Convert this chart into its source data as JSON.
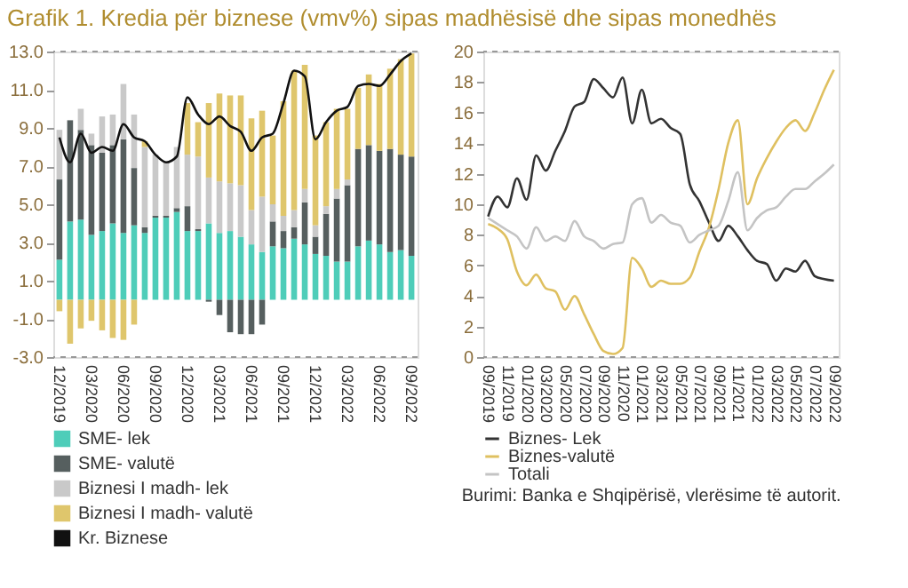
{
  "chart_data": [
    {
      "type": "bar",
      "stacked": true,
      "title": "Grafik 1. Kredia për biznese (vmv%) sipas madhësisë dhe sipas monedhës",
      "legend": "bottom",
      "categories": [
        "12/2019",
        null,
        null,
        "03/2020",
        null,
        null,
        "06/2020",
        null,
        null,
        "09/2020",
        null,
        null,
        "12/2020",
        null,
        null,
        "03/2021",
        null,
        null,
        "06/2021",
        null,
        null,
        "09/2021",
        null,
        null,
        "12/2021",
        null,
        null,
        "03/2022",
        null,
        null,
        "06/2022",
        null,
        null,
        "09/2022"
      ],
      "ylim": [
        -3,
        13
      ],
      "yticks": [
        {
          "value": -3,
          "label": "-3.0"
        },
        {
          "value": -1,
          "label": "-1.0"
        },
        {
          "value": 1,
          "label": "1.0"
        },
        {
          "value": 3,
          "label": "3.0"
        },
        {
          "value": 5,
          "label": "5.0"
        },
        {
          "value": 7,
          "label": "7.0"
        },
        {
          "value": 9,
          "label": "9.0"
        },
        {
          "value": 11,
          "label": "11.0"
        },
        {
          "value": 13,
          "label": "13.0"
        }
      ],
      "series": [
        {
          "name": "SME- lek",
          "color": "#4ecdb9",
          "values": [
            2.1,
            4.1,
            4.2,
            3.4,
            3.6,
            4.0,
            3.5,
            3.9,
            3.5,
            4.3,
            4.3,
            4.6,
            3.6,
            3.6,
            4.0,
            3.5,
            3.6,
            3.3,
            2.9,
            2.5,
            2.8,
            2.7,
            3.2,
            2.9,
            2.4,
            2.3,
            2.0,
            2.0,
            2.8,
            3.1,
            2.9,
            2.5,
            2.6,
            2.3
          ]
        },
        {
          "name": "SME- valutë",
          "color": "#565f5f",
          "values": [
            4.2,
            5.3,
            4.7,
            4.7,
            4.1,
            4.1,
            4.9,
            3.0,
            0.3,
            0.1,
            0.1,
            0.2,
            1.3,
            0.1,
            -0.1,
            -0.8,
            -1.7,
            -1.8,
            -1.8,
            -1.3,
            1.3,
            0.9,
            0.6,
            2.2,
            0.9,
            2.2,
            3.3,
            4.0,
            5.1,
            5.0,
            4.9,
            5.4,
            5.0,
            5.2
          ]
        },
        {
          "name": "Biznesi I madh- lek",
          "color": "#c9c9c9",
          "values": [
            2.6,
            null,
            1.1,
            0.6,
            1.9,
            1.6,
            2.9,
            2.8,
            4.2,
            3.2,
            2.8,
            3.2,
            2.7,
            3.8,
            2.4,
            2.7,
            2.5,
            2.7,
            1.8,
            2.9,
            0.9,
            0.8,
            0.9,
            0.7,
            0.6,
            0.4,
            0.5,
            0.3,
            null,
            null,
            null,
            null,
            null,
            null
          ]
        },
        {
          "name": "Biznesi I madh- valutë",
          "color": "#dfc66c",
          "values": [
            -0.6,
            -2.3,
            -1.5,
            -1.1,
            -1.6,
            -2.0,
            -2.1,
            -1.3,
            0.3,
            null,
            null,
            null,
            2.7,
            1.8,
            3.9,
            4.6,
            4.6,
            4.7,
            4.8,
            4.5,
            3.6,
            6.0,
            7.3,
            6.5,
            4.7,
            4.4,
            4.2,
            3.7,
            3.2,
            3.7,
            3.5,
            4.2,
            5.0,
            5.4
          ]
        },
        {
          "name": "Kr. Biznese",
          "type": "line",
          "color": "#111111",
          "values": [
            8.5,
            7.2,
            8.7,
            7.7,
            8.0,
            7.8,
            9.2,
            8.5,
            8.3,
            7.6,
            7.2,
            7.5,
            10.6,
            9.7,
            9.2,
            9.6,
            9.1,
            8.8,
            7.8,
            8.5,
            8.7,
            10.3,
            12.0,
            11.7,
            8.4,
            9.3,
            9.9,
            10.1,
            11.2,
            11.3,
            11.2,
            11.8,
            12.5,
            12.9
          ]
        }
      ]
    },
    {
      "type": "line",
      "legend": "bottom",
      "annotations": [
        "Burimi: Banka e Shqipërisë, vlerësime të autorit."
      ],
      "categories": [
        "09/2019",
        null,
        "11/2019",
        null,
        "01/2020",
        null,
        "03/2020",
        null,
        "05/2020",
        null,
        "07/2020",
        null,
        "09/2020",
        null,
        "11/2020",
        null,
        "01/2021",
        null,
        "03/2021",
        null,
        "05/2021",
        null,
        "07/2021",
        null,
        "09/2021",
        null,
        "11/2021",
        null,
        "01/2022",
        null,
        "03/2022",
        null,
        "05/2022",
        null,
        "07/2022",
        null,
        "09/2022"
      ],
      "ylim": [
        0,
        20
      ],
      "yticks": [
        0,
        2,
        4,
        6,
        8,
        10,
        12,
        14,
        16,
        18,
        20
      ],
      "series": [
        {
          "name": "Biznes- Lek",
          "color": "#333333",
          "values": [
            9.2,
            10.5,
            9.8,
            11.7,
            10.3,
            13.2,
            12.2,
            13.5,
            14.8,
            16.4,
            16.7,
            18.2,
            17.6,
            17.0,
            18.3,
            15.3,
            17.5,
            15.3,
            15.6,
            15.0,
            14.6,
            11.3,
            10.2,
            8.8,
            7.6,
            8.6,
            7.9,
            7.0,
            6.3,
            6.1,
            5.0,
            5.8,
            5.6,
            6.3,
            5.3,
            5.1,
            5.0
          ]
        },
        {
          "name": "Biznes-valutë",
          "color": "#dfc060",
          "values": [
            8.7,
            8.4,
            7.7,
            5.6,
            4.7,
            5.4,
            4.5,
            4.3,
            3.1,
            4.0,
            2.8,
            1.5,
            0.4,
            0.2,
            0.6,
            6.5,
            5.8,
            4.6,
            5.0,
            4.8,
            4.8,
            5.2,
            6.9,
            8.5,
            11.0,
            14.0,
            15.5,
            10.0,
            11.7,
            13.0,
            14.1,
            15.0,
            15.5,
            14.8,
            16.0,
            17.5,
            18.8
          ]
        },
        {
          "name": "Totali",
          "color": "#c4c4c4",
          "values": [
            9.1,
            8.7,
            8.3,
            7.9,
            7.1,
            8.5,
            7.6,
            7.9,
            7.6,
            8.9,
            7.9,
            7.6,
            7.1,
            7.4,
            7.5,
            10.0,
            10.4,
            8.8,
            9.3,
            8.8,
            8.6,
            7.5,
            8.0,
            8.3,
            8.6,
            10.2,
            12.1,
            8.3,
            9.1,
            9.6,
            9.8,
            10.5,
            11.0,
            11.0,
            11.5,
            12.0,
            12.6
          ]
        }
      ]
    }
  ]
}
